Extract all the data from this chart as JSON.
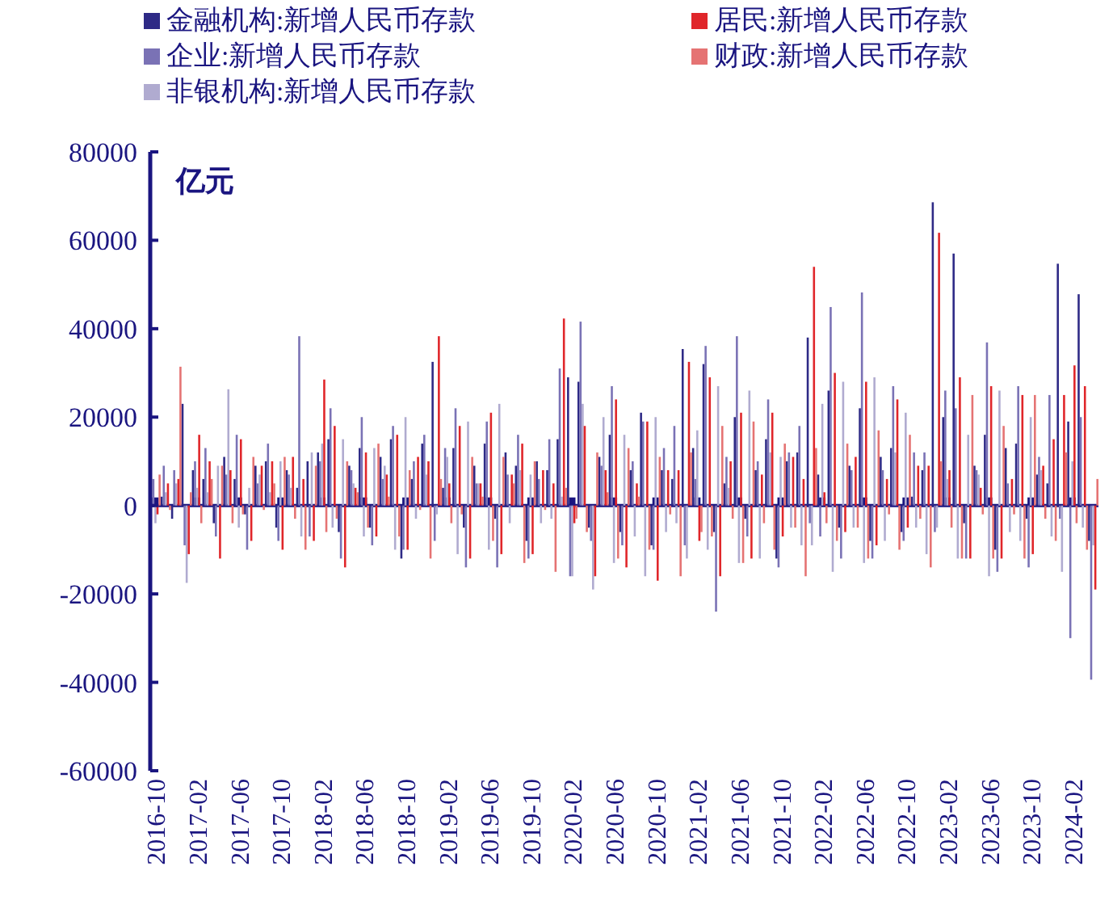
{
  "chart_data": {
    "type": "bar",
    "annotations": [
      "亿元"
    ],
    "legend": "top",
    "ylim": [
      -60000,
      80000
    ],
    "yticks": [
      -60000,
      -40000,
      -20000,
      0,
      20000,
      40000,
      60000,
      80000
    ],
    "grid": false,
    "ref_lines": [
      {
        "axis": "y",
        "value": 0,
        "color": "#1a1580"
      }
    ],
    "categories": [
      "2016-10",
      null,
      null,
      null,
      "2017-02",
      null,
      null,
      null,
      "2017-06",
      null,
      null,
      null,
      "2017-10",
      null,
      null,
      null,
      "2018-02",
      null,
      null,
      null,
      "2018-06",
      null,
      null,
      null,
      "2018-10",
      null,
      null,
      null,
      "2019-02",
      null,
      null,
      null,
      "2019-06",
      null,
      null,
      null,
      "2019-10",
      null,
      null,
      null,
      "2020-02",
      null,
      null,
      null,
      "2020-06",
      null,
      null,
      null,
      "2020-10",
      null,
      null,
      null,
      "2021-02",
      null,
      null,
      null,
      "2021-06",
      null,
      null,
      null,
      "2021-10",
      null,
      null,
      null,
      "2022-02",
      null,
      null,
      null,
      "2022-06",
      null,
      null,
      null,
      "2022-10",
      null,
      null,
      null,
      "2023-02",
      null,
      null,
      null,
      "2023-06",
      null,
      null,
      null,
      "2023-10",
      null,
      null,
      null,
      "2024-02",
      null,
      null
    ],
    "series": [
      {
        "name": "金融机构:新增人民币存款",
        "color": "#2e2a86",
        "values": [
          null,
          2000,
          -3000,
          23000,
          8000,
          6000,
          -4000,
          11000,
          6000,
          -2000,
          9000,
          10000,
          -5000,
          8000,
          4000,
          10000,
          12000,
          15000,
          -6000,
          9000,
          13000,
          -5000,
          11000,
          15000,
          -12000,
          6000,
          14000,
          32500,
          4000,
          13000,
          -5000,
          9000,
          14000,
          -3000,
          12000,
          9000,
          -8000,
          10000,
          8000,
          15000,
          29000,
          28000,
          -5000,
          11000,
          16000,
          -6000,
          8000,
          21000,
          -9000,
          8000,
          6000,
          35400,
          13000,
          32000,
          -6000,
          5000,
          20000,
          -3000,
          8000,
          15000,
          -12000,
          10000,
          12000,
          38000,
          7000,
          26000,
          -5000,
          9000,
          22000,
          -8000,
          11000,
          13000,
          -6000,
          2000,
          8000,
          68600,
          20000,
          57000,
          -4000,
          9000,
          16000,
          -10000,
          13000,
          14000,
          -3000,
          7000,
          5000,
          54700,
          19000,
          47800,
          -8000
        ]
      },
      {
        "name": "企业:新增人民币存款",
        "color": "#7a72b5",
        "values": [
          6000,
          9000,
          8000,
          -9000,
          10000,
          13000,
          -7000,
          7000,
          16000,
          -10000,
          5000,
          14000,
          -8000,
          7000,
          38300,
          -7000,
          10000,
          22000,
          -12000,
          8000,
          20000,
          -9000,
          6000,
          18000,
          -10000,
          10000,
          16000,
          -8000,
          13000,
          22000,
          -14000,
          5000,
          19000,
          -14000,
          7000,
          16000,
          -12000,
          6000,
          15000,
          31000,
          -16000,
          41600,
          -8000,
          9000,
          27000,
          -9000,
          10000,
          19000,
          -10000,
          13000,
          18000,
          -9000,
          6000,
          36100,
          -24000,
          11000,
          38300,
          -7000,
          10000,
          24000,
          -14000,
          12000,
          18000,
          -4000,
          -7000,
          44900,
          -12000,
          8000,
          48200,
          -12000,
          8000,
          27000,
          -8000,
          12000,
          12000,
          -6000,
          26000,
          22000,
          -12000,
          8000,
          36900,
          -15000,
          5000,
          27000,
          -14000,
          11000,
          25000,
          -3000,
          -30000,
          20000,
          -39400
        ]
      },
      {
        "name": "非银机构:新增人民币存款",
        "color": "#b0abd0",
        "values": [
          -4000,
          3000,
          5000,
          -17500,
          4000,
          3000,
          9000,
          26300,
          -5000,
          4000,
          7000,
          3000,
          10000,
          4000,
          -7000,
          12000,
          14000,
          -5000,
          15000,
          5000,
          -7000,
          13000,
          9000,
          -10000,
          20000,
          -3000,
          7000,
          -2000,
          11000,
          -11000,
          19000,
          5000,
          -10000,
          23000,
          -4000,
          8000,
          7000,
          -4000,
          -3000,
          2000,
          -16000,
          23000,
          -19000,
          20000,
          -13000,
          16000,
          -7000,
          -16000,
          20000,
          -6000,
          -4000,
          -12000,
          17000,
          -10000,
          27000,
          4000,
          -13000,
          26000,
          -12000,
          12000,
          11000,
          -5000,
          -9000,
          -9000,
          23000,
          -15000,
          28000,
          -5000,
          -13000,
          29000,
          -8000,
          12000,
          21000,
          -5000,
          -11000,
          -5000,
          6000,
          -12000,
          16000,
          7000,
          -16000,
          26000,
          -6000,
          -8000,
          20000,
          8000,
          -7000,
          -15000,
          10000,
          -5000,
          -9000
        ]
      },
      {
        "name": "居民:新增人民币存款",
        "color": "#e0262a",
        "values": [
          -2000,
          5000,
          6000,
          -11000,
          16000,
          10000,
          -12000,
          8000,
          15000,
          -8000,
          9000,
          10000,
          -10000,
          11000,
          6000,
          -8000,
          28500,
          18000,
          -14000,
          4000,
          12000,
          -7000,
          7000,
          16000,
          -10000,
          11000,
          10000,
          38300,
          5000,
          18000,
          -12000,
          5000,
          21000,
          -11000,
          7000,
          14000,
          -11000,
          8000,
          5000,
          42300,
          -4000,
          18000,
          -16000,
          8000,
          24000,
          -14000,
          5000,
          19000,
          -17000,
          8000,
          8000,
          32500,
          -8000,
          29000,
          -16000,
          10000,
          21000,
          -12000,
          7000,
          21000,
          -7000,
          11000,
          6000,
          54000,
          3000,
          30000,
          -6000,
          11000,
          28000,
          -9000,
          6000,
          24000,
          -5000,
          9000,
          9000,
          61700,
          8000,
          29000,
          -12000,
          4000,
          27000,
          -12000,
          6000,
          25000,
          -11000,
          9000,
          15000,
          25000,
          31700,
          27000,
          -19000
        ]
      },
      {
        "name": "财政:新增人民币存款",
        "color": "#e57373",
        "values": [
          7000,
          -1000,
          31400,
          3000,
          -4000,
          6000,
          9000,
          -4000,
          -2000,
          11000,
          -1000,
          5000,
          11000,
          -3000,
          -10000,
          9000,
          -6000,
          -3000,
          10000,
          3000,
          -5000,
          14000,
          2000,
          -7000,
          8000,
          -1000,
          -12000,
          6000,
          -4000,
          -2000,
          11000,
          2000,
          -8000,
          11000,
          5000,
          -13000,
          10000,
          -1000,
          -15000,
          4000,
          -3000,
          -6000,
          12000,
          3000,
          -12000,
          13000,
          2000,
          -10000,
          11000,
          -2000,
          -16000,
          12000,
          -6000,
          -7000,
          18000,
          -3000,
          -13000,
          19000,
          -4000,
          -10000,
          14000,
          -5000,
          -16000,
          13000,
          -4000,
          -8000,
          14000,
          -5000,
          -12000,
          17000,
          -2000,
          -10000,
          16000,
          -3000,
          -14000,
          10000,
          -5000,
          -12000,
          25000,
          -2000,
          -12000,
          18000,
          -2000,
          -12000,
          25000,
          -3000,
          -8000,
          12000,
          -4000,
          -10000,
          6000
        ]
      }
    ]
  }
}
